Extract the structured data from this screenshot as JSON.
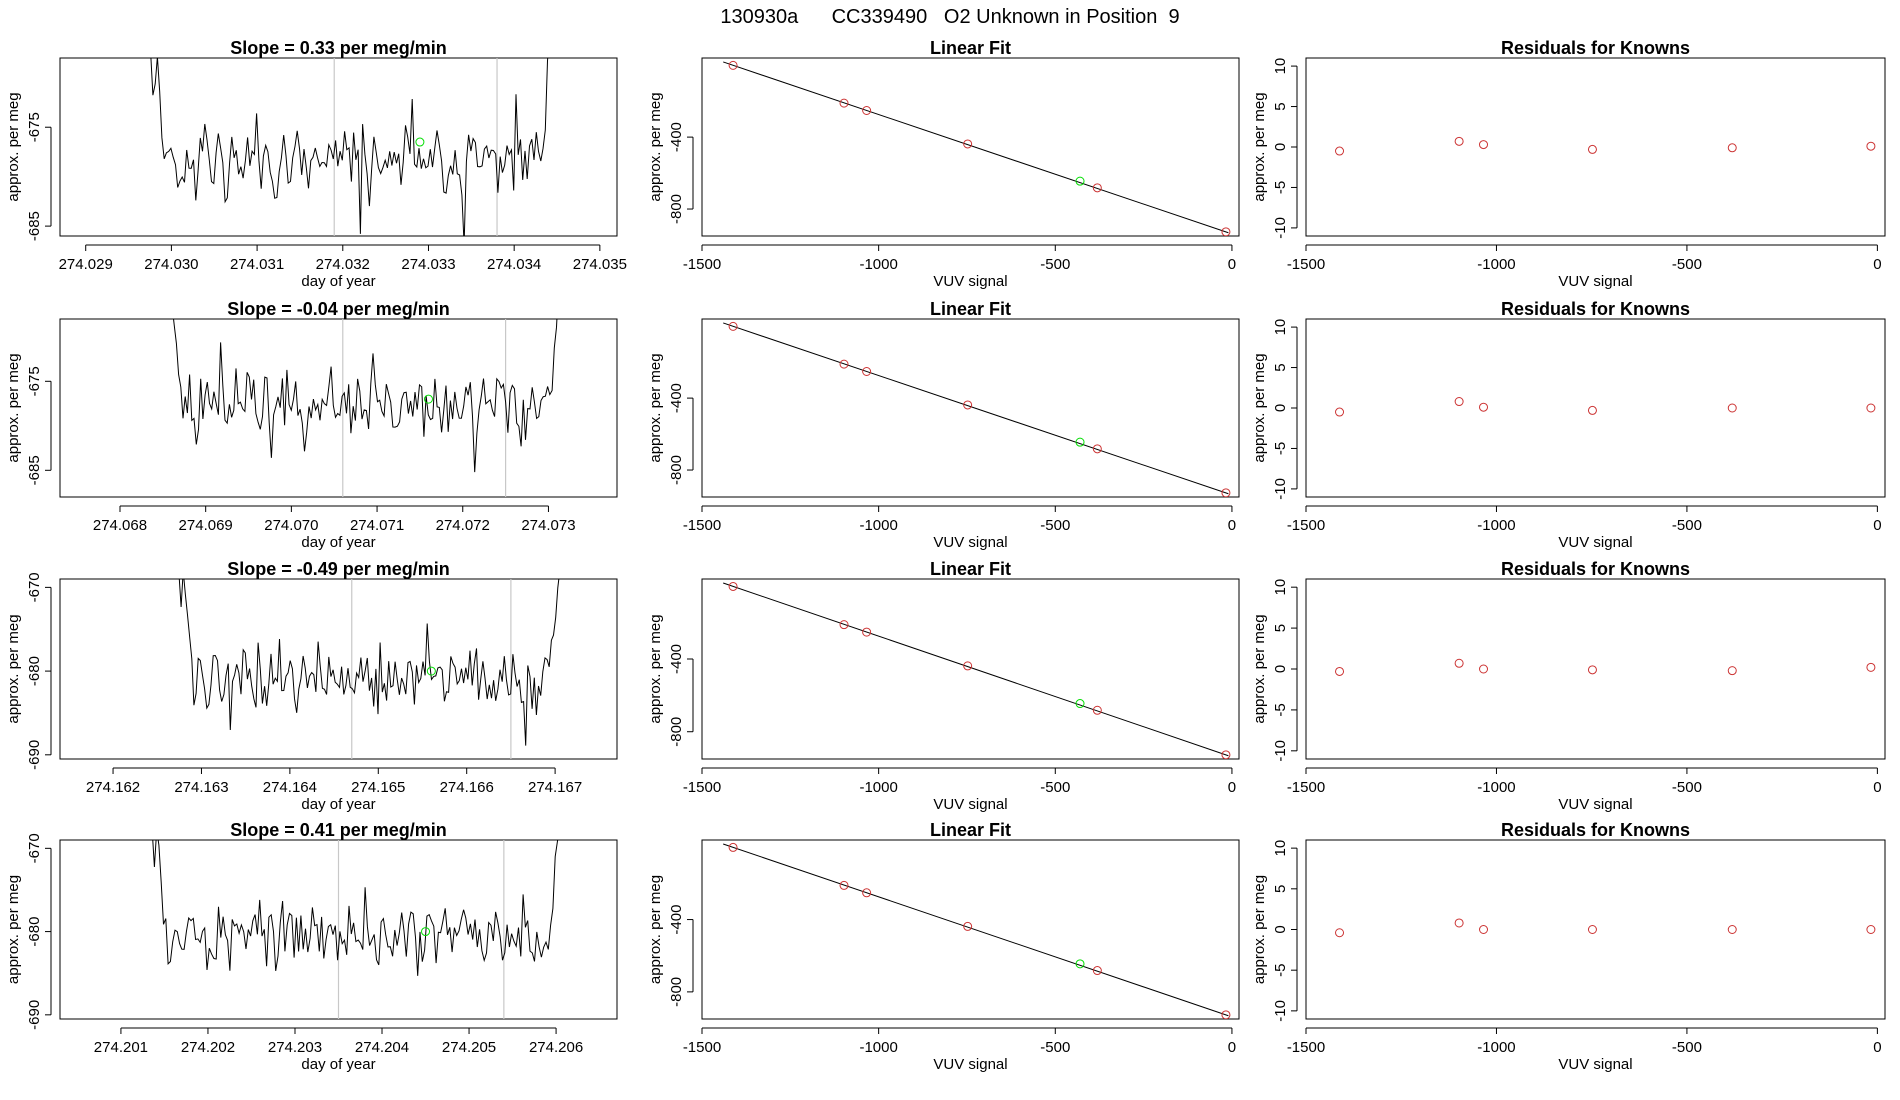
{
  "figure": {
    "title": "130930a      CC339490   O2 Unknown in Position  9"
  },
  "chart_data": [
    {
      "type": "line",
      "panel": "timeseries",
      "title": "Slope =  0.33  per meg/min",
      "xlabel": "day of year",
      "ylabel": "approx. per meg",
      "xlim": [
        274.0287,
        274.0352
      ],
      "ylim": [
        -686,
        -668
      ],
      "xticks": [
        274.029,
        274.03,
        274.031,
        274.032,
        274.033,
        274.034,
        274.035
      ],
      "yticks": [
        -675,
        -685
      ],
      "vlines": [
        274.0319,
        274.0338
      ],
      "start": 274.0296,
      "end": 274.0346,
      "mean": -678.5,
      "highlight": {
        "x": 274.0329,
        "y": -676.5
      },
      "seed": 11
    },
    {
      "type": "scatter",
      "panel": "fit",
      "title": "Linear Fit",
      "xlabel": "VUV signal",
      "ylabel": "approx. per meg",
      "xlim": [
        -1500,
        20
      ],
      "ylim": [
        -950,
        40
      ],
      "xticks": [
        -1500,
        -1000,
        -500,
        0
      ],
      "yticks": [
        -400,
        -800
      ],
      "points": [
        [
          -1412,
          -1
        ],
        [
          -1098,
          -211
        ],
        [
          -1034,
          -252
        ],
        [
          -748,
          -438
        ],
        [
          -381,
          -682
        ],
        [
          -17,
          -927
        ]
      ],
      "unknown": [
        -430,
        -645
      ],
      "line": [
        [
          -1440,
          18
        ],
        [
          -10,
          -932
        ]
      ]
    },
    {
      "type": "scatter",
      "panel": "residuals",
      "title": "Residuals for Knowns",
      "xlabel": "VUV signal",
      "ylabel": "approx. per meg",
      "xlim": [
        -1500,
        20
      ],
      "ylim": [
        -11,
        11
      ],
      "xticks": [
        -1500,
        -1000,
        -500,
        0
      ],
      "yticks": [
        10,
        5,
        0,
        -5,
        -10
      ],
      "points": [
        [
          -1412,
          -0.5
        ],
        [
          -1098,
          0.7
        ],
        [
          -1034,
          0.3
        ],
        [
          -748,
          -0.3
        ],
        [
          -381,
          -0.1
        ],
        [
          -17,
          0.1
        ]
      ]
    },
    {
      "type": "line",
      "panel": "timeseries",
      "title": "Slope =  -0.04  per meg/min",
      "xlabel": "day of year",
      "ylabel": "approx. per meg",
      "xlim": [
        274.0673,
        274.0738
      ],
      "ylim": [
        -688,
        -668
      ],
      "xticks": [
        274.068,
        274.069,
        274.07,
        274.071,
        274.072,
        274.073
      ],
      "yticks": [
        -675,
        -685
      ],
      "vlines": [
        274.0706,
        274.0725
      ],
      "start": 274.0684,
      "end": 274.0733,
      "mean": -677.5,
      "highlight": {
        "x": 274.0716,
        "y": -677.0
      },
      "seed": 23
    },
    {
      "type": "scatter",
      "panel": "fit",
      "title": "Linear Fit",
      "xlabel": "VUV signal",
      "ylabel": "approx. per meg",
      "xlim": [
        -1500,
        20
      ],
      "ylim": [
        -950,
        40
      ],
      "xticks": [
        -1500,
        -1000,
        -500,
        0
      ],
      "yticks": [
        -400,
        -800
      ],
      "points": [
        [
          -1412,
          -1
        ],
        [
          -1098,
          -211
        ],
        [
          -1034,
          -252
        ],
        [
          -748,
          -438
        ],
        [
          -381,
          -682
        ],
        [
          -17,
          -927
        ]
      ],
      "unknown": [
        -430,
        -645
      ],
      "line": [
        [
          -1440,
          18
        ],
        [
          -10,
          -932
        ]
      ]
    },
    {
      "type": "scatter",
      "panel": "residuals",
      "title": "Residuals for Knowns",
      "xlabel": "VUV signal",
      "ylabel": "approx. per meg",
      "xlim": [
        -1500,
        20
      ],
      "ylim": [
        -11,
        11
      ],
      "xticks": [
        -1500,
        -1000,
        -500,
        0
      ],
      "yticks": [
        10,
        5,
        0,
        -5,
        -10
      ],
      "points": [
        [
          -1412,
          -0.5
        ],
        [
          -1098,
          0.8
        ],
        [
          -1034,
          0.1
        ],
        [
          -748,
          -0.3
        ],
        [
          -381,
          0.0
        ],
        [
          -17,
          0.0
        ]
      ]
    },
    {
      "type": "line",
      "panel": "timeseries",
      "title": "Slope =  -0.49  per meg/min",
      "xlabel": "day of year",
      "ylabel": "approx. per meg",
      "xlim": [
        274.1614,
        274.1677
      ],
      "ylim": [
        -690.5,
        -669
      ],
      "xticks": [
        274.162,
        274.163,
        274.164,
        274.165,
        274.166,
        274.167
      ],
      "yticks": [
        -670,
        -680,
        -690
      ],
      "vlines": [
        274.1647,
        274.1665
      ],
      "start": 274.1626,
      "end": 274.1672,
      "mean": -681.0,
      "highlight": {
        "x": 274.1656,
        "y": -680.0
      },
      "seed": 37
    },
    {
      "type": "scatter",
      "panel": "fit",
      "title": "Linear Fit",
      "xlabel": "VUV signal",
      "ylabel": "approx. per meg",
      "xlim": [
        -1500,
        20
      ],
      "ylim": [
        -950,
        40
      ],
      "xticks": [
        -1500,
        -1000,
        -500,
        0
      ],
      "yticks": [
        -400,
        -800
      ],
      "points": [
        [
          -1412,
          -1
        ],
        [
          -1098,
          -211
        ],
        [
          -1034,
          -252
        ],
        [
          -748,
          -438
        ],
        [
          -381,
          -682
        ],
        [
          -17,
          -927
        ]
      ],
      "unknown": [
        -430,
        -645
      ],
      "line": [
        [
          -1440,
          18
        ],
        [
          -10,
          -932
        ]
      ]
    },
    {
      "type": "scatter",
      "panel": "residuals",
      "title": "Residuals for Knowns",
      "xlabel": "VUV signal",
      "ylabel": "approx. per meg",
      "xlim": [
        -1500,
        20
      ],
      "ylim": [
        -11,
        11
      ],
      "xticks": [
        -1500,
        -1000,
        -500,
        0
      ],
      "yticks": [
        10,
        5,
        0,
        -5,
        -10
      ],
      "points": [
        [
          -1412,
          -0.3
        ],
        [
          -1098,
          0.7
        ],
        [
          -1034,
          0.0
        ],
        [
          -748,
          -0.1
        ],
        [
          -381,
          -0.2
        ],
        [
          -17,
          0.2
        ]
      ]
    },
    {
      "type": "line",
      "panel": "timeseries",
      "title": "Slope =  0.41  per meg/min",
      "xlabel": "day of year",
      "ylabel": "approx. per meg",
      "xlim": [
        274.2003,
        274.2067
      ],
      "ylim": [
        -690.5,
        -669
      ],
      "xticks": [
        274.201,
        274.202,
        274.203,
        274.204,
        274.205,
        274.206
      ],
      "yticks": [
        -670,
        -680,
        -690
      ],
      "vlines": [
        274.2035,
        274.2054
      ],
      "start": 274.2012,
      "end": 274.2062,
      "mean": -680.5,
      "highlight": {
        "x": 274.2045,
        "y": -680.0
      },
      "seed": 53
    },
    {
      "type": "scatter",
      "panel": "fit",
      "title": "Linear Fit",
      "xlabel": "VUV signal",
      "ylabel": "approx. per meg",
      "xlim": [
        -1500,
        20
      ],
      "ylim": [
        -950,
        40
      ],
      "xticks": [
        -1500,
        -1000,
        -500,
        0
      ],
      "yticks": [
        -400,
        -800
      ],
      "points": [
        [
          -1412,
          -1
        ],
        [
          -1098,
          -211
        ],
        [
          -1034,
          -252
        ],
        [
          -748,
          -438
        ],
        [
          -381,
          -682
        ],
        [
          -17,
          -927
        ]
      ],
      "unknown": [
        -430,
        -645
      ],
      "line": [
        [
          -1440,
          18
        ],
        [
          -10,
          -932
        ]
      ]
    },
    {
      "type": "scatter",
      "panel": "residuals",
      "title": "Residuals for Knowns",
      "xlabel": "VUV signal",
      "ylabel": "approx. per meg",
      "xlim": [
        -1500,
        20
      ],
      "ylim": [
        -11,
        11
      ],
      "xticks": [
        -1500,
        -1000,
        -500,
        0
      ],
      "yticks": [
        10,
        5,
        0,
        -5,
        -10
      ],
      "points": [
        [
          -1412,
          -0.4
        ],
        [
          -1098,
          0.8
        ],
        [
          -1034,
          0.0
        ],
        [
          -748,
          0.0
        ],
        [
          -381,
          0.0
        ],
        [
          -17,
          0.0
        ]
      ]
    }
  ]
}
